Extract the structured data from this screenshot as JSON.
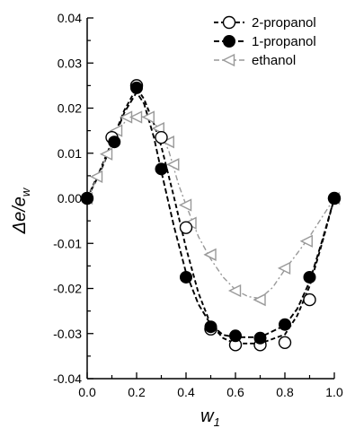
{
  "chart_data": {
    "type": "scatter",
    "ylabel_main": "Δe/e",
    "ylabel_sub": "w",
    "xlabel_main": "w",
    "xlabel_sub": "1",
    "xlim": [
      0.0,
      1.0
    ],
    "ylim": [
      -0.04,
      0.04
    ],
    "xticks": [
      0.0,
      0.2,
      0.4,
      0.6,
      0.8,
      1.0
    ],
    "xtick_labels": [
      "0.0",
      "0.2",
      "0.4",
      "0.6",
      "0.8",
      "1.0"
    ],
    "yticks": [
      0.04,
      0.03,
      0.02,
      0.01,
      0.0,
      -0.01,
      -0.02,
      -0.03,
      -0.04
    ],
    "ytick_labels": [
      "0.04",
      "0.03",
      "0.02",
      "0.01",
      "0.00",
      "-0.01",
      "-0.02",
      "-0.03",
      "-0.04"
    ],
    "grid": false,
    "legend_position": "top-right",
    "series": [
      {
        "name": "2-propanol",
        "marker": "open-circle",
        "color": "#000000",
        "points": [
          [
            0.0,
            0.0
          ],
          [
            0.1,
            0.0135
          ],
          [
            0.2,
            0.025
          ],
          [
            0.3,
            0.0135
          ],
          [
            0.4,
            -0.0065
          ],
          [
            0.5,
            -0.029
          ],
          [
            0.6,
            -0.0325
          ],
          [
            0.7,
            -0.0325
          ],
          [
            0.8,
            -0.032
          ],
          [
            0.9,
            -0.0225
          ],
          [
            1.0,
            0.0
          ]
        ],
        "curve": [
          [
            0.0,
            0.0
          ],
          [
            0.05,
            0.006
          ],
          [
            0.1,
            0.0125
          ],
          [
            0.15,
            0.0195
          ],
          [
            0.2,
            0.0245
          ],
          [
            0.23,
            0.022
          ],
          [
            0.27,
            0.0165
          ],
          [
            0.3,
            0.0115
          ],
          [
            0.35,
            0.0005
          ],
          [
            0.4,
            -0.011
          ],
          [
            0.45,
            -0.021
          ],
          [
            0.5,
            -0.028
          ],
          [
            0.55,
            -0.031
          ],
          [
            0.6,
            -0.0322
          ],
          [
            0.7,
            -0.0322
          ],
          [
            0.8,
            -0.0302
          ],
          [
            0.85,
            -0.026
          ],
          [
            0.9,
            -0.0195
          ],
          [
            0.95,
            -0.01
          ],
          [
            1.0,
            0.0
          ]
        ]
      },
      {
        "name": "1-propanol",
        "marker": "filled-circle",
        "color": "#000000",
        "points": [
          [
            0.0,
            0.0
          ],
          [
            0.11,
            0.0125
          ],
          [
            0.2,
            0.0245
          ],
          [
            0.3,
            0.0065
          ],
          [
            0.4,
            -0.0175
          ],
          [
            0.5,
            -0.0285
          ],
          [
            0.6,
            -0.0305
          ],
          [
            0.7,
            -0.031
          ],
          [
            0.8,
            -0.028
          ],
          [
            0.9,
            -0.0175
          ],
          [
            1.0,
            0.0
          ]
        ],
        "curve": [
          [
            0.0,
            0.0
          ],
          [
            0.05,
            0.0055
          ],
          [
            0.1,
            0.012
          ],
          [
            0.15,
            0.019
          ],
          [
            0.2,
            0.0235
          ],
          [
            0.23,
            0.021
          ],
          [
            0.27,
            0.0135
          ],
          [
            0.3,
            0.006
          ],
          [
            0.35,
            -0.006
          ],
          [
            0.4,
            -0.0165
          ],
          [
            0.45,
            -0.0235
          ],
          [
            0.5,
            -0.028
          ],
          [
            0.55,
            -0.0303
          ],
          [
            0.6,
            -0.0308
          ],
          [
            0.7,
            -0.0308
          ],
          [
            0.8,
            -0.0282
          ],
          [
            0.85,
            -0.0245
          ],
          [
            0.9,
            -0.0185
          ],
          [
            0.95,
            -0.0095
          ],
          [
            1.0,
            0.0
          ]
        ]
      },
      {
        "name": "ethanol",
        "marker": "open-triangle-left",
        "color": "#999999",
        "points": [
          [
            0.0,
            0.0
          ],
          [
            0.04,
            0.0048
          ],
          [
            0.08,
            0.0098
          ],
          [
            0.12,
            0.015
          ],
          [
            0.16,
            0.018
          ],
          [
            0.2,
            0.018
          ],
          [
            0.25,
            0.018
          ],
          [
            0.29,
            0.0155
          ],
          [
            0.33,
            0.0125
          ],
          [
            0.35,
            0.0075
          ],
          [
            0.4,
            -0.0015
          ],
          [
            0.42,
            -0.0055
          ],
          [
            0.5,
            -0.0125
          ],
          [
            0.6,
            -0.0205
          ],
          [
            0.7,
            -0.0225
          ],
          [
            0.8,
            -0.0155
          ],
          [
            0.89,
            -0.0095
          ],
          [
            1.0,
            0.0
          ]
        ],
        "curve": [
          [
            0.0,
            0.0
          ],
          [
            0.04,
            0.0045
          ],
          [
            0.08,
            0.0095
          ],
          [
            0.12,
            0.0145
          ],
          [
            0.16,
            0.0175
          ],
          [
            0.2,
            0.0183
          ],
          [
            0.25,
            0.0178
          ],
          [
            0.29,
            0.0155
          ],
          [
            0.33,
            0.0105
          ],
          [
            0.37,
            0.003
          ],
          [
            0.4,
            -0.0015
          ],
          [
            0.45,
            -0.0085
          ],
          [
            0.5,
            -0.0135
          ],
          [
            0.55,
            -0.0175
          ],
          [
            0.6,
            -0.0203
          ],
          [
            0.65,
            -0.0218
          ],
          [
            0.7,
            -0.0222
          ],
          [
            0.75,
            -0.0198
          ],
          [
            0.8,
            -0.0158
          ],
          [
            0.85,
            -0.0122
          ],
          [
            0.9,
            -0.0085
          ],
          [
            0.95,
            -0.0042
          ],
          [
            1.0,
            0.0
          ]
        ]
      }
    ]
  }
}
